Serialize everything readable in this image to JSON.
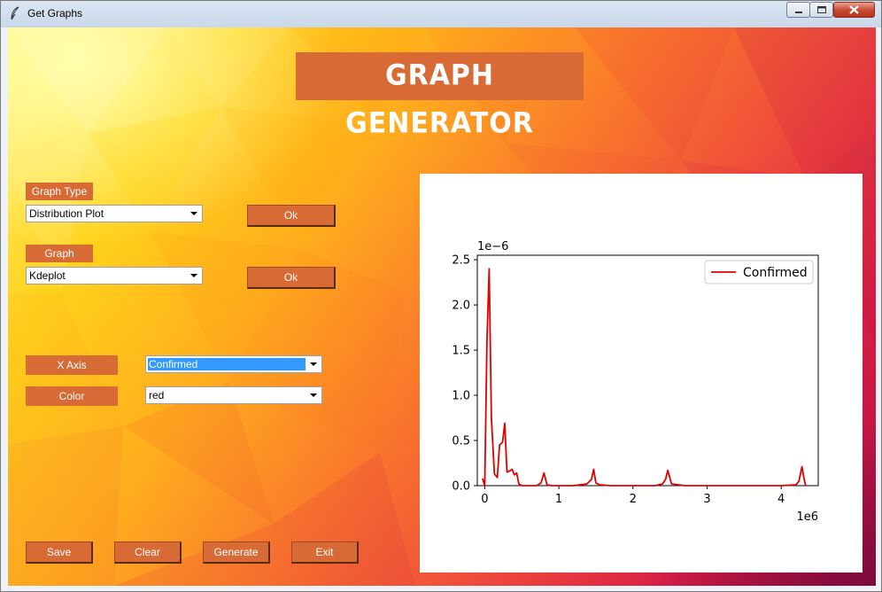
{
  "window": {
    "title": "Get Graphs"
  },
  "header": {
    "title": "GRAPH   GENERATOR"
  },
  "graph_type": {
    "label": "Graph Type",
    "value": "Distribution Plot",
    "ok_label": "Ok"
  },
  "graph": {
    "label": "Graph",
    "value": "Kdeplot",
    "ok_label": "Ok"
  },
  "x_axis": {
    "label": "X Axis",
    "value": "Confirmed"
  },
  "color": {
    "label": "Color",
    "value": "red"
  },
  "actions": {
    "save": "Save",
    "clear": "Clear",
    "generate": "Generate",
    "exit": "Exit"
  },
  "icons": {
    "app": "feather-icon",
    "minimize": "minimize-icon",
    "maximize": "maximize-icon",
    "close": "close-icon",
    "dropdown": "chevron-down-icon"
  },
  "colors": {
    "accent": "#d76a35",
    "line": "#e00000",
    "selection": "#3399ff"
  },
  "chart_data": {
    "type": "line",
    "series": [
      {
        "name": "Confirmed",
        "color": "#e00000",
        "x": [
          -0.03,
          0.0,
          0.03,
          0.06,
          0.09,
          0.13,
          0.17,
          0.2,
          0.24,
          0.27,
          0.3,
          0.33,
          0.37,
          0.4,
          0.43,
          0.46,
          0.5,
          0.6,
          0.7,
          0.76,
          0.8,
          0.84,
          0.9,
          1.0,
          1.2,
          1.38,
          1.44,
          1.47,
          1.5,
          1.55,
          1.7,
          2.0,
          2.3,
          2.4,
          2.44,
          2.47,
          2.52,
          2.7,
          3.0,
          3.5,
          4.0,
          4.2,
          4.24,
          4.28,
          4.31,
          4.33
        ],
        "y": [
          0.08,
          0.0,
          1.6,
          2.4,
          0.75,
          0.13,
          0.09,
          0.45,
          0.48,
          0.69,
          0.15,
          0.16,
          0.18,
          0.12,
          0.14,
          0.02,
          0.0,
          0.0,
          0.0,
          0.03,
          0.14,
          0.01,
          0.0,
          0.0,
          0.0,
          0.02,
          0.07,
          0.18,
          0.03,
          0.01,
          0.0,
          0.0,
          0.0,
          0.02,
          0.07,
          0.17,
          0.02,
          0.0,
          0.0,
          0.0,
          0.0,
          0.01,
          0.05,
          0.21,
          0.07,
          0.0
        ]
      }
    ],
    "xlim": [
      -0.1,
      4.5
    ],
    "ylim": [
      0,
      2.55
    ],
    "xticks": [
      "0",
      "1",
      "2",
      "3",
      "4"
    ],
    "yticks": [
      "0.0",
      "0.5",
      "1.0",
      "1.5",
      "2.0",
      "2.5"
    ],
    "x_scale_label": "1e6",
    "y_scale_label": "1e−6",
    "legend": "top-right",
    "grid": false
  }
}
